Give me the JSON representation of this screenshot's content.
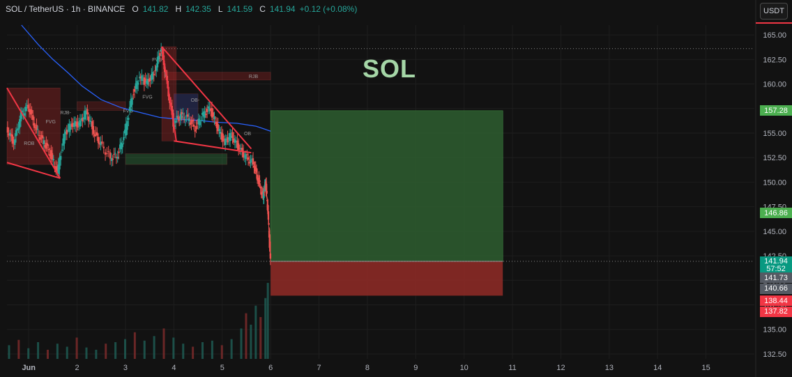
{
  "header": {
    "symbol": "SOL / TetherUS · 1h · BINANCE",
    "o_label": "O",
    "o_value": "141.82",
    "h_label": "H",
    "h_value": "142.35",
    "l_label": "L",
    "l_value": "141.59",
    "c_label": "C",
    "c_value": "141.94",
    "change": "+0.12 (+0.08%)"
  },
  "currency_button": "USDT",
  "watermark": "SOL",
  "colors": {
    "background": "#121212",
    "bull": "#26a69a",
    "bear": "#ef5350",
    "ma_line": "#2962ff",
    "pattern_line": "#f23645",
    "target_zone": "#2e5e30",
    "stop_zone": "#8b2a26",
    "accent_red": "#f23645"
  },
  "price_tags": [
    {
      "label": "157.28",
      "value": 157.28,
      "bg": "#4caf50"
    },
    {
      "label": "146.86",
      "value": 146.86,
      "bg": "#4caf50"
    },
    {
      "label": "141.94",
      "value": 141.94,
      "bg": "#089981"
    },
    {
      "label": "57:52",
      "value": 141.14,
      "bg": "#089981"
    },
    {
      "label": "141.73",
      "value": 140.26,
      "bg": "#555a63"
    },
    {
      "label": "140.66",
      "value": 139.16,
      "bg": "#555a63"
    },
    {
      "label": "138.44",
      "value": 137.93,
      "bg": "#f23645"
    },
    {
      "label": "137.82",
      "value": 136.83,
      "bg": "#f23645"
    }
  ],
  "chart_data": {
    "type": "candlestick",
    "title": "SOL",
    "symbol": "SOL / TetherUS",
    "interval": "1h",
    "exchange": "BINANCE",
    "y_axis": {
      "ticks": [
        132.5,
        135.0,
        137.5,
        140.0,
        142.5,
        145.0,
        147.5,
        150.0,
        152.5,
        155.0,
        157.5,
        160.0,
        162.5,
        165.0
      ],
      "tick_labels": [
        "132.50",
        "135.00",
        "137.50",
        "140.00",
        "142.50",
        "145.00",
        "147.50",
        "150.00",
        "152.50",
        "155.00",
        "157.50",
        "160.00",
        "162.50",
        "165.00"
      ],
      "range": [
        132.0,
        166.0
      ]
    },
    "x_axis": {
      "ticks": [
        1,
        2,
        3,
        4,
        5,
        6,
        7,
        8,
        9,
        10,
        11,
        12,
        13,
        14,
        15
      ],
      "tick_labels": [
        "Jun",
        "2",
        "3",
        "4",
        "5",
        "6",
        "7",
        "8",
        "9",
        "10",
        "11",
        "12",
        "13",
        "14",
        "15"
      ],
      "range": [
        0.55,
        16.0
      ]
    },
    "close_path": [
      [
        0.55,
        155.5
      ],
      [
        0.7,
        154.0
      ],
      [
        0.85,
        156.8
      ],
      [
        1.0,
        157.8
      ],
      [
        1.15,
        155.5
      ],
      [
        1.3,
        154.2
      ],
      [
        1.45,
        153.0
      ],
      [
        1.6,
        151.0
      ],
      [
        1.75,
        154.8
      ],
      [
        1.9,
        156.0
      ],
      [
        2.05,
        155.8
      ],
      [
        2.2,
        157.2
      ],
      [
        2.35,
        155.2
      ],
      [
        2.5,
        153.8
      ],
      [
        2.7,
        152.5
      ],
      [
        2.85,
        152.8
      ],
      [
        3.0,
        155.0
      ],
      [
        3.15,
        158.8
      ],
      [
        3.3,
        160.8
      ],
      [
        3.45,
        160.0
      ],
      [
        3.6,
        161.2
      ],
      [
        3.75,
        163.6
      ],
      [
        3.85,
        160.5
      ],
      [
        4.0,
        156.0
      ],
      [
        4.15,
        156.8
      ],
      [
        4.3,
        156.5
      ],
      [
        4.45,
        155.5
      ],
      [
        4.6,
        156.8
      ],
      [
        4.75,
        157.5
      ],
      [
        4.9,
        155.8
      ],
      [
        5.05,
        154.0
      ],
      [
        5.2,
        154.8
      ],
      [
        5.35,
        153.5
      ],
      [
        5.5,
        152.5
      ],
      [
        5.65,
        152.0
      ],
      [
        5.75,
        150.2
      ],
      [
        5.85,
        148.5
      ],
      [
        5.9,
        150.0
      ],
      [
        5.95,
        147.0
      ],
      [
        6.0,
        141.94
      ]
    ],
    "moving_average": [
      [
        0.85,
        166.0
      ],
      [
        1.2,
        164.0
      ],
      [
        1.5,
        162.5
      ],
      [
        1.8,
        161.2
      ],
      [
        2.1,
        159.8
      ],
      [
        2.5,
        158.4
      ],
      [
        2.9,
        157.6
      ],
      [
        3.3,
        157.1
      ],
      [
        3.7,
        156.6
      ],
      [
        4.1,
        156.4
      ],
      [
        4.5,
        156.3
      ],
      [
        4.9,
        156.1
      ],
      [
        5.3,
        156.0
      ],
      [
        5.7,
        155.7
      ],
      [
        6.0,
        155.2
      ]
    ],
    "volume": {
      "range": [
        0,
        110
      ],
      "bars": [
        [
          0.6,
          18
        ],
        [
          0.8,
          25
        ],
        [
          1.0,
          14
        ],
        [
          1.2,
          22
        ],
        [
          1.4,
          12
        ],
        [
          1.6,
          20
        ],
        [
          1.8,
          16
        ],
        [
          2.0,
          28
        ],
        [
          2.2,
          15
        ],
        [
          2.4,
          12
        ],
        [
          2.6,
          20
        ],
        [
          2.8,
          22
        ],
        [
          3.0,
          26
        ],
        [
          3.2,
          35
        ],
        [
          3.4,
          24
        ],
        [
          3.6,
          30
        ],
        [
          3.8,
          40
        ],
        [
          4.0,
          28
        ],
        [
          4.2,
          20
        ],
        [
          4.4,
          16
        ],
        [
          4.6,
          22
        ],
        [
          4.8,
          24
        ],
        [
          5.0,
          18
        ],
        [
          5.2,
          26
        ],
        [
          5.4,
          40
        ],
        [
          5.5,
          60
        ],
        [
          5.6,
          45
        ],
        [
          5.7,
          70
        ],
        [
          5.8,
          55
        ],
        [
          5.9,
          80
        ],
        [
          5.95,
          100
        ]
      ]
    },
    "position_tool": {
      "entry": 141.94,
      "target": 157.28,
      "stop": 138.44,
      "x_start": 6.0,
      "x_end": 10.8
    },
    "reference_lines": [
      163.6,
      141.94
    ],
    "pattern_lines": [
      [
        [
          0.55,
          159.6
        ],
        [
          1.65,
          150.4
        ]
      ],
      [
        [
          0.55,
          152.0
        ],
        [
          1.65,
          150.4
        ]
      ],
      [
        [
          3.75,
          163.8
        ],
        [
          5.6,
          153.4
        ]
      ],
      [
        [
          4.0,
          154.2
        ],
        [
          5.6,
          153.0
        ]
      ],
      [
        [
          3.75,
          163.8
        ],
        [
          4.05,
          154.2
        ]
      ]
    ],
    "zone_labels": [
      "FVG",
      "FVG-",
      "OB-",
      "OB",
      "RJB-",
      "RJB",
      "ROB"
    ]
  }
}
